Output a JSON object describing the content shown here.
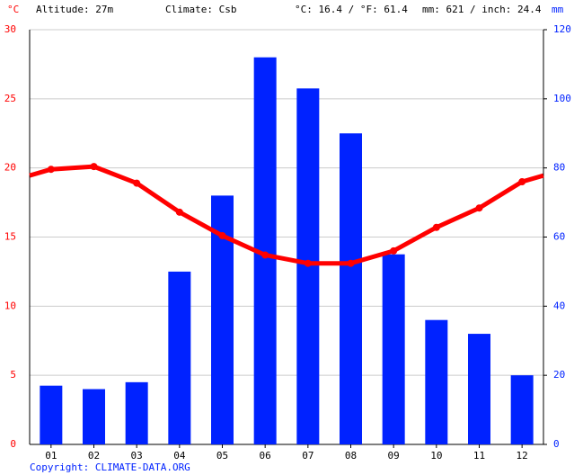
{
  "chart_data": {
    "type": "combo",
    "header": [
      "Altitude: 27m",
      "Climate: Csb",
      "°C: 16.4 / °F: 61.4",
      "mm: 621 / inch: 24.4"
    ],
    "y_label": "°C",
    "y2_label": "mm",
    "footer": "Copyright: CLIMATE-DATA.ORG",
    "categories": [
      "01",
      "02",
      "03",
      "04",
      "05",
      "06",
      "07",
      "08",
      "09",
      "10",
      "11",
      "12"
    ],
    "series": [
      {
        "type": "bar",
        "axis": "y2",
        "color": "#0022ff",
        "values": [
          17,
          16,
          18,
          50,
          72,
          112,
          103,
          90,
          55,
          36,
          32,
          20
        ]
      },
      {
        "type": "line",
        "axis": "y",
        "color": "#ff0000",
        "values": [
          19.9,
          20.1,
          18.9,
          16.8,
          15.1,
          13.7,
          13.1,
          13.1,
          14.0,
          15.7,
          17.1,
          19.0
        ]
      }
    ],
    "ylim": [
      0,
      30
    ],
    "yticks": [
      0,
      5,
      10,
      15,
      20,
      25,
      30
    ],
    "ycolor": "#ff0000",
    "y2lim": [
      0,
      120
    ],
    "y2ticks": [
      0,
      20,
      40,
      60,
      80,
      100,
      120
    ],
    "y2color": "#0022ff",
    "grid": true
  }
}
